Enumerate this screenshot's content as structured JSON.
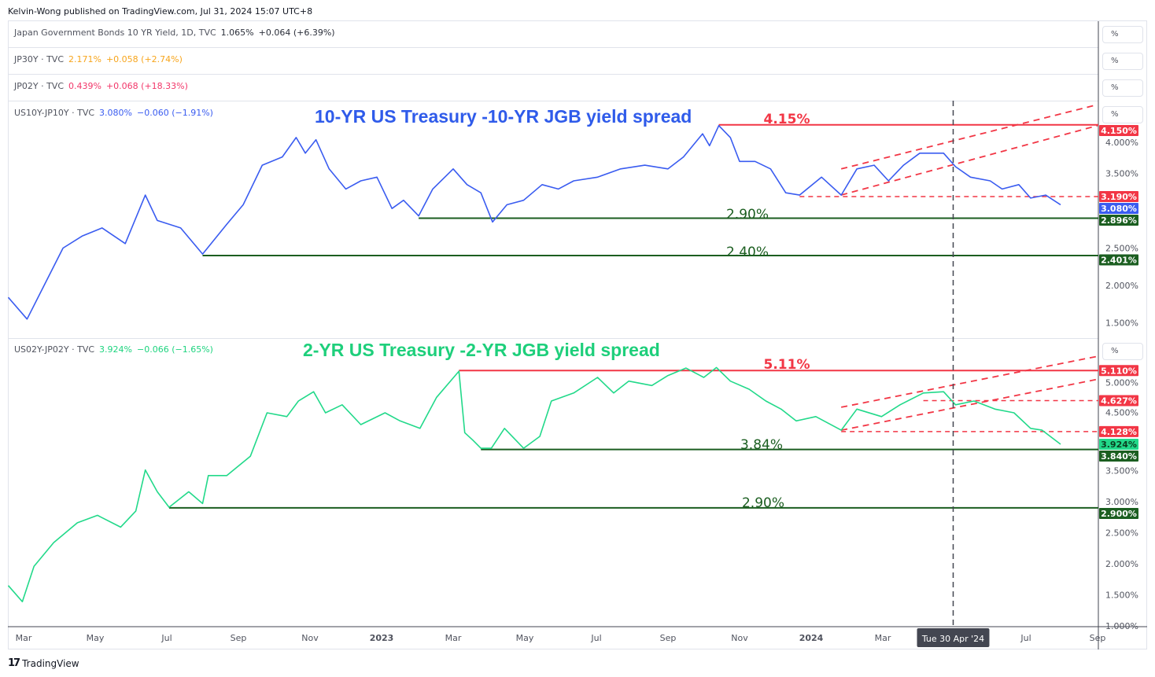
{
  "attribution": "Kelvin-Wong published on TradingView.com, Jul 31, 2024 15:07 UTC+8",
  "brand": "TradingView",
  "legend_rows": [
    {
      "symbol": "Japan Government Bonds 10 YR Yield, 1D, TVC",
      "value": "1.065%",
      "change": "+0.064 (+6.39%)",
      "color": "#2a2e39"
    },
    {
      "symbol": "JP30Y · TVC",
      "value": "2.171%",
      "change": "+0.058 (+2.74%)",
      "color": "#f7a51c"
    },
    {
      "symbol": "JP02Y · TVC",
      "value": "0.439%",
      "change": "+0.068 (+18.33%)",
      "color": "#f23669"
    },
    {
      "symbol": "US10Y-JP10Y · TVC",
      "value": "3.080%",
      "change": "−0.060 (−1.91%)",
      "color": "#3a5cf0"
    },
    {
      "symbol": "US02Y-JP02Y · TVC",
      "value": "3.924%",
      "change": "−0.066 (−1.65%)",
      "color": "#1ed47f"
    }
  ],
  "scale_unit": "%",
  "crosshair_label": "Tue 30 Apr '24",
  "colors": {
    "red": "#f23645",
    "dark_green": "#1b5e20",
    "blue_line": "#3a5cf0",
    "green_line": "#22d98a",
    "crosshair": "#434651"
  },
  "chart_data": [
    {
      "type": "line",
      "title": "10-YR US Treasury -10-YR JGB yield spread",
      "series": [
        {
          "name": "US10Y-JP10Y",
          "points": [
            [
              "2022-02-17",
              1.84
            ],
            [
              "2022-03-04",
              1.55
            ],
            [
              "2022-04-04",
              2.5
            ],
            [
              "2022-04-20",
              2.66
            ],
            [
              "2022-05-07",
              2.77
            ],
            [
              "2022-05-27",
              2.56
            ],
            [
              "2022-06-13",
              3.21
            ],
            [
              "2022-06-23",
              2.87
            ],
            [
              "2022-07-13",
              2.77
            ],
            [
              "2022-08-01",
              2.42
            ],
            [
              "2022-08-22",
              2.82
            ],
            [
              "2022-09-05",
              3.08
            ],
            [
              "2022-09-21",
              3.61
            ],
            [
              "2022-10-08",
              3.72
            ],
            [
              "2022-10-20",
              3.98
            ],
            [
              "2022-10-28",
              3.77
            ],
            [
              "2022-11-06",
              3.95
            ],
            [
              "2022-11-17",
              3.56
            ],
            [
              "2022-12-01",
              3.29
            ],
            [
              "2022-12-14",
              3.4
            ],
            [
              "2022-12-28",
              3.45
            ],
            [
              "2023-01-10",
              3.03
            ],
            [
              "2023-01-20",
              3.14
            ],
            [
              "2023-02-02",
              2.93
            ],
            [
              "2023-02-13",
              3.29
            ],
            [
              "2023-03-01",
              3.56
            ],
            [
              "2023-03-13",
              3.35
            ],
            [
              "2023-03-25",
              3.24
            ],
            [
              "2023-04-04",
              2.85
            ],
            [
              "2023-04-16",
              3.08
            ],
            [
              "2023-04-30",
              3.14
            ],
            [
              "2023-05-16",
              3.35
            ],
            [
              "2023-05-30",
              3.29
            ],
            [
              "2023-06-12",
              3.4
            ],
            [
              "2023-07-02",
              3.45
            ],
            [
              "2023-07-22",
              3.56
            ],
            [
              "2023-08-12",
              3.61
            ],
            [
              "2023-09-01",
              3.56
            ],
            [
              "2023-09-14",
              3.72
            ],
            [
              "2023-09-30",
              4.03
            ],
            [
              "2023-10-06",
              3.87
            ],
            [
              "2023-10-14",
              4.14
            ],
            [
              "2023-10-24",
              3.98
            ],
            [
              "2023-11-01",
              3.66
            ],
            [
              "2023-11-14",
              3.66
            ],
            [
              "2023-11-27",
              3.56
            ],
            [
              "2023-12-10",
              3.24
            ],
            [
              "2023-12-22",
              3.21
            ],
            [
              "2024-01-10",
              3.45
            ],
            [
              "2024-01-27",
              3.21
            ],
            [
              "2024-02-09",
              3.56
            ],
            [
              "2024-02-23",
              3.61
            ],
            [
              "2024-03-06",
              3.4
            ],
            [
              "2024-03-19",
              3.61
            ],
            [
              "2024-04-02",
              3.77
            ],
            [
              "2024-04-22",
              3.77
            ],
            [
              "2024-05-02",
              3.59
            ],
            [
              "2024-05-15",
              3.45
            ],
            [
              "2024-06-01",
              3.4
            ],
            [
              "2024-06-11",
              3.29
            ],
            [
              "2024-06-25",
              3.35
            ],
            [
              "2024-07-05",
              3.17
            ],
            [
              "2024-07-18",
              3.21
            ],
            [
              "2024-07-31",
              3.08
            ]
          ]
        }
      ],
      "horizontal_levels": [
        {
          "value": 4.15,
          "from": "2023-10-14",
          "label": "4.15%",
          "color": "red",
          "style": "solid"
        },
        {
          "value": 2.9,
          "from": "2023-02-02",
          "label": "2.90%",
          "color": "dark_green",
          "style": "solid"
        },
        {
          "value": 2.4,
          "from": "2022-08-01",
          "label": "2.40%",
          "color": "dark_green",
          "style": "solid"
        },
        {
          "value": 3.19,
          "from": "2023-12-22",
          "label": "",
          "color": "red",
          "style": "dashed"
        }
      ],
      "trend_lines": [
        {
          "from": [
            "2024-01-27",
            3.56
          ],
          "to": [
            "2024-09-01",
            4.42
          ]
        },
        {
          "from": [
            "2024-01-27",
            3.21
          ],
          "to": [
            "2024-09-01",
            4.14
          ]
        }
      ],
      "axis_ticks": [
        "4.000%",
        "3.500%",
        "2.500%",
        "2.000%",
        "1.500%"
      ],
      "price_labels": [
        {
          "text": "4.150%",
          "value": 4.15,
          "color": "red"
        },
        {
          "text": "3.190%",
          "value": 3.19,
          "color": "red"
        },
        {
          "text": "3.080%",
          "value": 3.08,
          "color": "blue_line"
        },
        {
          "text": "2.896%",
          "value": 2.896,
          "color": "dark_green"
        },
        {
          "text": "2.401%",
          "value": 2.401,
          "color": "dark_green"
        }
      ],
      "ylim": [
        1.3,
        4.6
      ]
    },
    {
      "type": "line",
      "title": "2-YR US Treasury -2-YR JGB yield spread",
      "series": [
        {
          "name": "US02Y-JP02Y",
          "points": [
            [
              "2022-02-17",
              1.65
            ],
            [
              "2022-02-28",
              1.39
            ],
            [
              "2022-03-10",
              1.96
            ],
            [
              "2022-03-27",
              2.34
            ],
            [
              "2022-04-16",
              2.66
            ],
            [
              "2022-05-03",
              2.78
            ],
            [
              "2022-05-23",
              2.59
            ],
            [
              "2022-06-05",
              2.85
            ],
            [
              "2022-06-13",
              3.51
            ],
            [
              "2022-06-23",
              3.16
            ],
            [
              "2022-07-03",
              2.91
            ],
            [
              "2022-07-20",
              3.16
            ],
            [
              "2022-08-01",
              2.97
            ],
            [
              "2022-08-06",
              3.42
            ],
            [
              "2022-08-22",
              3.42
            ],
            [
              "2022-09-11",
              3.73
            ],
            [
              "2022-09-25",
              4.43
            ],
            [
              "2022-10-12",
              4.37
            ],
            [
              "2022-10-22",
              4.62
            ],
            [
              "2022-11-04",
              4.77
            ],
            [
              "2022-11-14",
              4.43
            ],
            [
              "2022-11-28",
              4.56
            ],
            [
              "2022-12-14",
              4.24
            ],
            [
              "2023-01-04",
              4.43
            ],
            [
              "2023-01-17",
              4.3
            ],
            [
              "2023-02-03",
              4.18
            ],
            [
              "2023-02-16",
              4.68
            ],
            [
              "2023-03-06",
              5.1
            ],
            [
              "2023-03-11",
              4.11
            ],
            [
              "2023-03-18",
              3.99
            ],
            [
              "2023-03-25",
              3.86
            ],
            [
              "2023-04-03",
              3.86
            ],
            [
              "2023-04-14",
              4.18
            ],
            [
              "2023-04-30",
              3.86
            ],
            [
              "2023-05-14",
              4.05
            ],
            [
              "2023-05-24",
              4.62
            ],
            [
              "2023-06-12",
              4.75
            ],
            [
              "2023-07-02",
              5.0
            ],
            [
              "2023-07-16",
              4.75
            ],
            [
              "2023-07-29",
              4.94
            ],
            [
              "2023-08-18",
              4.87
            ],
            [
              "2023-09-01",
              5.03
            ],
            [
              "2023-09-16",
              5.15
            ],
            [
              "2023-10-01",
              5.0
            ],
            [
              "2023-10-12",
              5.16
            ],
            [
              "2023-10-24",
              4.94
            ],
            [
              "2023-11-09",
              4.81
            ],
            [
              "2023-11-23",
              4.62
            ],
            [
              "2023-12-06",
              4.49
            ],
            [
              "2023-12-19",
              4.3
            ],
            [
              "2024-01-05",
              4.37
            ],
            [
              "2024-01-27",
              4.15
            ],
            [
              "2024-02-09",
              4.49
            ],
            [
              "2024-02-29",
              4.37
            ],
            [
              "2024-03-16",
              4.56
            ],
            [
              "2024-04-05",
              4.75
            ],
            [
              "2024-04-22",
              4.77
            ],
            [
              "2024-05-02",
              4.56
            ],
            [
              "2024-05-18",
              4.62
            ],
            [
              "2024-06-05",
              4.49
            ],
            [
              "2024-06-21",
              4.43
            ],
            [
              "2024-07-05",
              4.18
            ],
            [
              "2024-07-15",
              4.15
            ],
            [
              "2024-07-31",
              3.924
            ]
          ]
        }
      ],
      "horizontal_levels": [
        {
          "value": 5.11,
          "from": "2023-03-06",
          "label": "5.11%",
          "color": "red",
          "style": "solid"
        },
        {
          "value": 3.84,
          "from": "2023-03-25",
          "label": "3.84%",
          "color": "dark_green",
          "style": "solid"
        },
        {
          "value": 2.9,
          "from": "2022-07-03",
          "label": "2.90%",
          "color": "dark_green",
          "style": "solid"
        },
        {
          "value": 4.627,
          "from": "2024-04-05",
          "label": "",
          "color": "red",
          "style": "dashed"
        },
        {
          "value": 4.128,
          "from": "2024-01-27",
          "label": "",
          "color": "red",
          "style": "dashed"
        }
      ],
      "trend_lines": [
        {
          "from": [
            "2024-01-27",
            4.52
          ],
          "to": [
            "2024-09-01",
            5.34
          ]
        },
        {
          "from": [
            "2024-01-27",
            4.15
          ],
          "to": [
            "2024-09-01",
            4.97
          ]
        }
      ],
      "axis_ticks": [
        "5.000%",
        "4.500%",
        "3.500%",
        "3.000%",
        "2.500%",
        "2.000%",
        "1.500%",
        "1.000%"
      ],
      "price_labels": [
        {
          "text": "5.110%",
          "value": 5.11,
          "color": "red"
        },
        {
          "text": "4.627%",
          "value": 4.627,
          "color": "red"
        },
        {
          "text": "4.128%",
          "value": 4.128,
          "color": "red"
        },
        {
          "text": "3.924%",
          "value": 3.924,
          "color": "green_line"
        },
        {
          "text": "3.840%",
          "value": 3.84,
          "color": "dark_green"
        },
        {
          "text": "2.900%",
          "value": 2.9,
          "color": "dark_green"
        }
      ],
      "ylim": [
        0.96,
        5.6
      ]
    }
  ],
  "x_axis": {
    "ticks": [
      {
        "date": "2022-03-01",
        "label": "Mar"
      },
      {
        "date": "2022-05-01",
        "label": "May"
      },
      {
        "date": "2022-07-01",
        "label": "Jul"
      },
      {
        "date": "2022-09-01",
        "label": "Sep"
      },
      {
        "date": "2022-11-01",
        "label": "Nov"
      },
      {
        "date": "2023-01-01",
        "label": "2023",
        "bold": true
      },
      {
        "date": "2023-03-01",
        "label": "Mar"
      },
      {
        "date": "2023-05-01",
        "label": "May"
      },
      {
        "date": "2023-07-01",
        "label": "Jul"
      },
      {
        "date": "2023-09-01",
        "label": "Sep"
      },
      {
        "date": "2023-11-01",
        "label": "Nov"
      },
      {
        "date": "2024-01-01",
        "label": "2024",
        "bold": true
      },
      {
        "date": "2024-03-01",
        "label": "Mar"
      },
      {
        "date": "2024-07-01",
        "label": "Jul"
      },
      {
        "date": "2024-09-01",
        "label": "Sep"
      }
    ],
    "crosshair_date": "2024-04-30"
  }
}
